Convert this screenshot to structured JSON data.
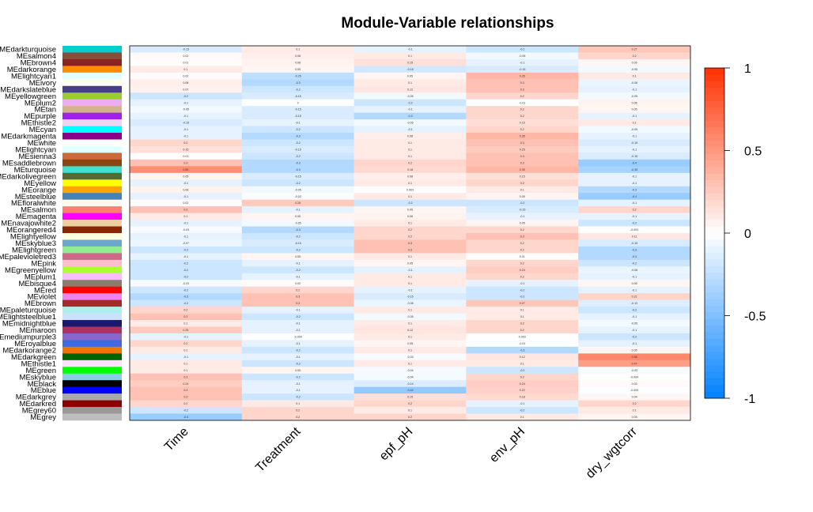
{
  "chart_data": {
    "type": "heatmap",
    "title": "Module-Variable relationships",
    "xlabel": "",
    "ylabel": "",
    "columns": [
      "Time",
      "Treatment",
      "epf_pH",
      "env_pH",
      "dry_wgtcorr"
    ],
    "rows": [
      {
        "name": "MEdarkturquoise",
        "color": "#00CED1",
        "values": [
          -0.15,
          0.1,
          -0.1,
          -0.2,
          0.27
        ]
      },
      {
        "name": "MEsalmon4",
        "color": "#8B4C39",
        "values": [
          0.02,
          0.08,
          0.1,
          -0.05,
          0.2
        ]
      },
      {
        "name": "MEbrown4",
        "color": "#8B2323",
        "values": [
          0.01,
          0.06,
          0.15,
          -0.1,
          0.05
        ]
      },
      {
        "name": "MEdarkorange",
        "color": "#FF8C00",
        "values": [
          0.1,
          0.05,
          -0.18,
          -0.15,
          -0.05
        ]
      },
      {
        "name": "MElightcyan1",
        "color": "#E0FFFF",
        "values": [
          0.02,
          -0.25,
          0.05,
          0.35,
          0.1
        ]
      },
      {
        "name": "MEivory",
        "color": "#FFFFF0",
        "values": [
          0.08,
          -0.3,
          0.1,
          0.3,
          -0.08
        ]
      },
      {
        "name": "MEdarkslateblue",
        "color": "#483D8B",
        "values": [
          0.07,
          -0.2,
          0.12,
          0.3,
          -0.1
        ]
      },
      {
        "name": "MEyellowgreen",
        "color": "#9ACD32",
        "values": [
          -0.2,
          -0.15,
          -0.05,
          0.2,
          -0.05
        ]
      },
      {
        "name": "MEplum2",
        "color": "#EEAEEE",
        "values": [
          -0.1,
          0.0,
          -0.2,
          -0.01,
          0.06
        ]
      },
      {
        "name": "MEtan",
        "color": "#D2B48C",
        "values": [
          -0.05,
          -0.15,
          -0.1,
          0.2,
          0.05
        ]
      },
      {
        "name": "MEpurple",
        "color": "#A020F0",
        "values": [
          -0.1,
          -0.15,
          -0.3,
          0.2,
          -0.1
        ]
      },
      {
        "name": "MEthistle2",
        "color": "#EED2EE",
        "values": [
          -0.15,
          -0.1,
          -0.05,
          0.15,
          0.1
        ]
      },
      {
        "name": "MEcyan",
        "color": "#00FFFF",
        "values": [
          -0.1,
          -0.2,
          -0.1,
          0.2,
          -0.05
        ]
      },
      {
        "name": "MEdarkmagenta",
        "color": "#8B008B",
        "values": [
          -0.1,
          -0.3,
          0.08,
          0.35,
          -0.1
        ]
      },
      {
        "name": "MEwhite",
        "color": "#FFFFFF",
        "values": [
          0.2,
          -0.2,
          0.1,
          0.3,
          -0.15
        ]
      },
      {
        "name": "MElightcyan",
        "color": "#E0FFFF",
        "values": [
          0.15,
          -0.15,
          0.1,
          0.25,
          -0.1
        ]
      },
      {
        "name": "MEsienna3",
        "color": "#CD6839",
        "values": [
          0.01,
          -0.2,
          0.1,
          0.3,
          -0.15
        ]
      },
      {
        "name": "MEsaddlebrown",
        "color": "#8B4513",
        "values": [
          0.3,
          -0.3,
          0.2,
          0.3,
          -0.4
        ]
      },
      {
        "name": "MEturquoise",
        "color": "#40E0D0",
        "values": [
          0.55,
          -0.3,
          0.18,
          0.35,
          -0.35
        ]
      },
      {
        "name": "MEdarkolivegreen",
        "color": "#556B2F",
        "values": [
          0.05,
          -0.15,
          0.08,
          0.15,
          -0.1
        ]
      },
      {
        "name": "MEyellow",
        "color": "#FFFF00",
        "values": [
          -0.1,
          -0.2,
          0.1,
          0.2,
          -0.1
        ]
      },
      {
        "name": "MEorange",
        "color": "#FFA500",
        "values": [
          0.06,
          -0.05,
          0.003,
          0.1,
          -0.3
        ]
      },
      {
        "name": "MEsteelblue",
        "color": "#4682B4",
        "values": [
          -0.1,
          -0.02,
          0.1,
          0.05,
          -0.4
        ]
      },
      {
        "name": "MEfloralwhite",
        "color": "#FFFAF0",
        "values": [
          0.02,
          0.25,
          -0.2,
          -0.2,
          -0.1
        ]
      },
      {
        "name": "MEsalmon",
        "color": "#FA8072",
        "values": [
          0.3,
          -0.1,
          0.05,
          -0.15,
          0.2
        ]
      },
      {
        "name": "MEmagenta",
        "color": "#FF00FF",
        "values": [
          0.1,
          0.05,
          0.06,
          -0.1,
          -0.1
        ]
      },
      {
        "name": "MEnavajowhite2",
        "color": "#EECFA1",
        "values": [
          -0.1,
          -0.05,
          0.1,
          0.05,
          -0.2
        ]
      },
      {
        "name": "MEorangered4",
        "color": "#8B2500",
        "values": [
          -0.03,
          -0.3,
          0.2,
          0.2,
          -0.003
        ]
      },
      {
        "name": "MElightyellow",
        "color": "#FFFFE0",
        "values": [
          -0.1,
          -0.2,
          0.2,
          0.3,
          0.11
        ]
      },
      {
        "name": "MEskyblue3",
        "color": "#6CA6CD",
        "values": [
          -0.07,
          -0.15,
          0.3,
          0.2,
          -0.15
        ]
      },
      {
        "name": "MElightgreen",
        "color": "#90EE90",
        "values": [
          -0.2,
          -0.2,
          0.3,
          0.2,
          -0.3
        ]
      },
      {
        "name": "MEpalevioletred3",
        "color": "#CD6889",
        "values": [
          -0.1,
          0.05,
          0.1,
          0.01,
          -0.3
        ]
      },
      {
        "name": "MEpink",
        "color": "#FFC0CB",
        "values": [
          -0.2,
          -0.1,
          0.05,
          0.2,
          -0.2
        ]
      },
      {
        "name": "MEgreenyellow",
        "color": "#ADFF2F",
        "values": [
          -0.2,
          -0.2,
          -0.1,
          0.24,
          -0.08
        ]
      },
      {
        "name": "MEplum1",
        "color": "#FFBBFF",
        "values": [
          -0.2,
          -0.1,
          0.1,
          0.2,
          -0.1
        ]
      },
      {
        "name": "MEbisque4",
        "color": "#8B7D6B",
        "values": [
          -0.03,
          0.02,
          0.1,
          -0.1,
          0.05
        ]
      },
      {
        "name": "MEred",
        "color": "#FF0000",
        "values": [
          -0.2,
          0.2,
          -0.1,
          -0.2,
          -0.1
        ]
      },
      {
        "name": "MEviolet",
        "color": "#EE82EE",
        "values": [
          -0.3,
          0.3,
          -0.15,
          -0.2,
          0.21
        ]
      },
      {
        "name": "MEbrown",
        "color": "#A52A2A",
        "values": [
          -0.2,
          0.3,
          -0.08,
          0.27,
          -0.13
        ]
      },
      {
        "name": "MEpaleturquoise",
        "color": "#AFEEEE",
        "values": [
          0.2,
          -0.1,
          0.1,
          0.1,
          -0.2
        ]
      },
      {
        "name": "MElightsteelblue1",
        "color": "#CAE1FF",
        "values": [
          0.3,
          -0.2,
          -0.05,
          0.1,
          -0.1
        ]
      },
      {
        "name": "MEmidnightblue",
        "color": "#191970",
        "values": [
          0.1,
          -0.1,
          0.1,
          0.2,
          -0.05
        ]
      },
      {
        "name": "MEmaroon",
        "color": "#B03060",
        "values": [
          0.25,
          -0.1,
          0.12,
          0.2,
          -0.1
        ]
      },
      {
        "name": "MEmediumpurple3",
        "color": "#8968CD",
        "values": [
          -0.1,
          -0.009,
          0.1,
          0.003,
          -0.2
        ]
      },
      {
        "name": "MEroyalblue",
        "color": "#4169E1",
        "values": [
          0.2,
          -0.1,
          0.05,
          -0.01,
          -0.1
        ]
      },
      {
        "name": "MEdarkorange2",
        "color": "#EE7600",
        "values": [
          0.1,
          -0.2,
          0.1,
          -0.3,
          0.05
        ]
      },
      {
        "name": "MEdarkgreen",
        "color": "#006400",
        "values": [
          -0.1,
          -0.1,
          -0.03,
          0.12,
          0.58
        ]
      },
      {
        "name": "MEthistle1",
        "color": "#FFE1FF",
        "values": [
          0.1,
          -0.2,
          0.1,
          0.1,
          0.47
        ]
      },
      {
        "name": "MEgreen",
        "color": "#00FF00",
        "values": [
          0.1,
          0.05,
          -0.04,
          -0.2,
          -0.03
        ]
      },
      {
        "name": "MEskyblue",
        "color": "#87CEEB",
        "values": [
          0.3,
          -0.2,
          -0.04,
          0.2,
          -0.004
        ]
      },
      {
        "name": "MEblack",
        "color": "#000000",
        "values": [
          0.24,
          -0.1,
          -0.14,
          0.24,
          0.03
        ]
      },
      {
        "name": "MEblue",
        "color": "#0000FF",
        "values": [
          0.3,
          -0.1,
          -0.42,
          0.22,
          -0.009
        ]
      },
      {
        "name": "MEdarkgrey",
        "color": "#A9A9A9",
        "values": [
          0.3,
          -0.2,
          0.15,
          0.18,
          0.04
        ]
      },
      {
        "name": "MEdarkred",
        "color": "#8B0000",
        "values": [
          0.2,
          0.1,
          0.2,
          -0.1,
          0.2
        ]
      },
      {
        "name": "MEgrey60",
        "color": "#999999",
        "values": [
          -0.2,
          0.2,
          0.1,
          -0.2,
          0.1
        ]
      },
      {
        "name": "MEgrey",
        "color": "#BEBEBE",
        "values": [
          -0.4,
          0.2,
          0.2,
          0.1,
          0.05
        ]
      }
    ],
    "colorbar": {
      "range": [
        -1,
        1
      ],
      "ticks": [
        "1",
        "0.5",
        "0",
        "-0.5",
        "-1"
      ],
      "low_color": "#0080FF",
      "mid_color": "#FFFFFF",
      "high_color": "#FF3000"
    },
    "grid": false,
    "legend": "right"
  }
}
